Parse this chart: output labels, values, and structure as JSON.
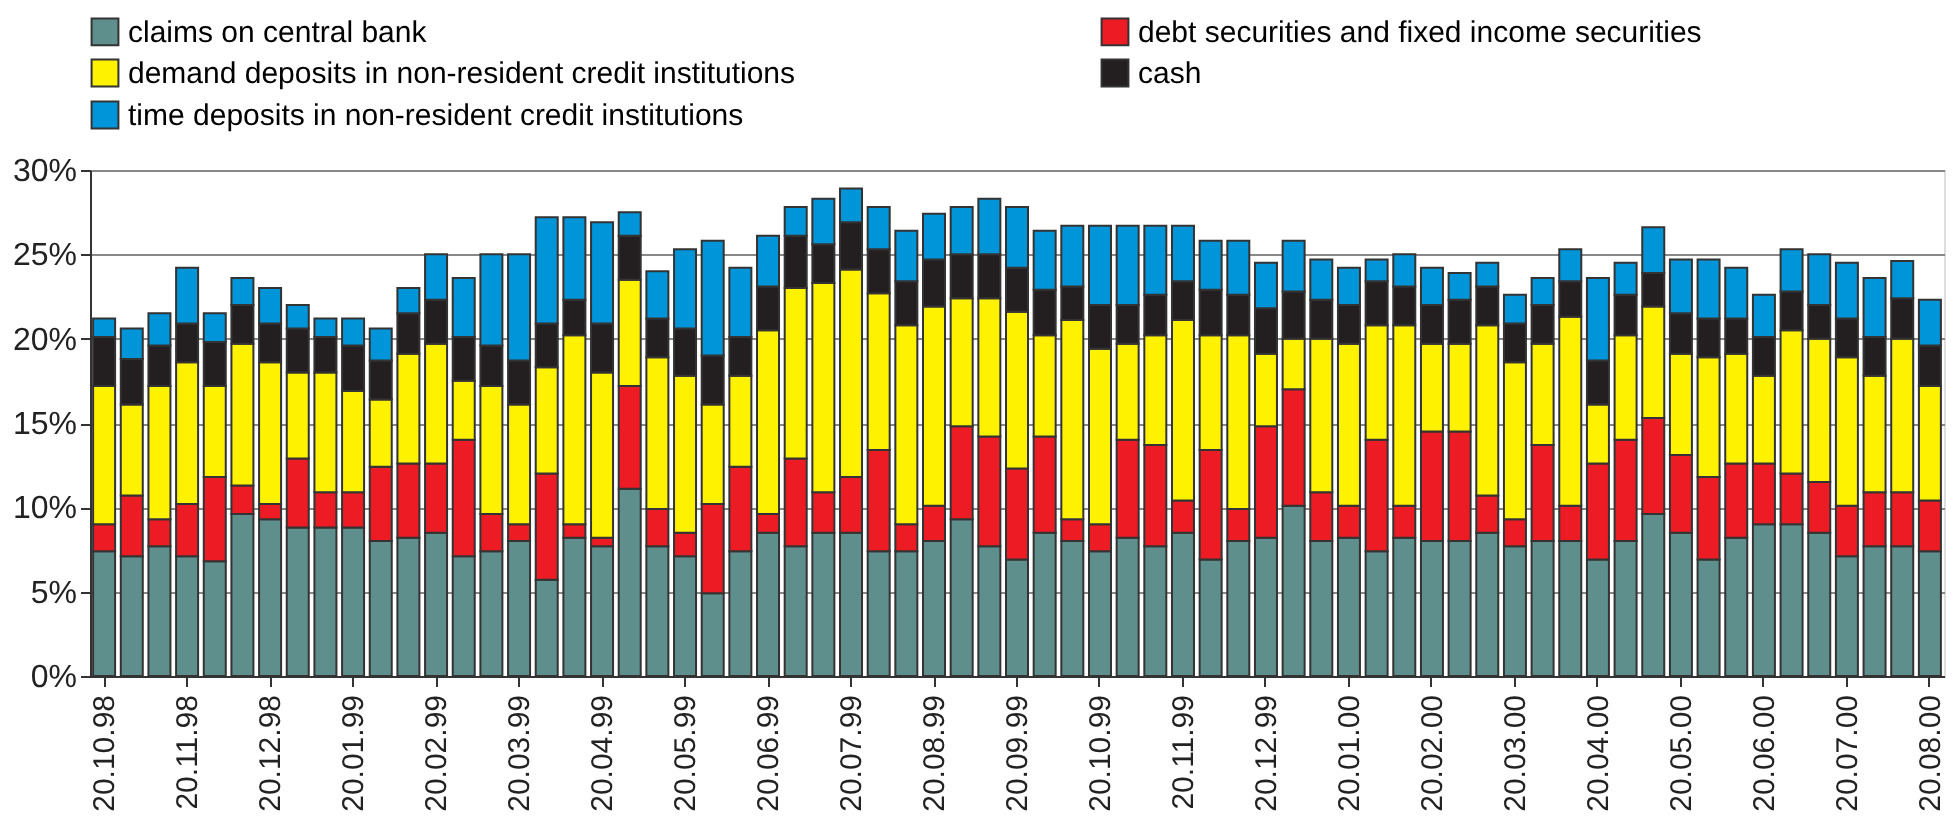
{
  "chart_data": {
    "type": "bar",
    "stacked": true,
    "categories": [
      "20.10.98",
      null,
      null,
      "20.11.98",
      null,
      null,
      "20.12.98",
      null,
      null,
      "20.01.99",
      null,
      null,
      "20.02.99",
      null,
      null,
      "20.03.99",
      null,
      null,
      "20.04.99",
      null,
      null,
      "20.05.99",
      null,
      null,
      "20.06.99",
      null,
      null,
      "20.07.99",
      null,
      null,
      "20.08.99",
      null,
      null,
      "20.09.99",
      null,
      null,
      "20.10.99",
      null,
      null,
      "20.11.99",
      null,
      null,
      "20.12.99",
      null,
      null,
      "20.01.00",
      null,
      null,
      "20.02.00",
      null,
      null,
      "20.03.00",
      null,
      null,
      "20.04.00",
      null,
      null,
      "20.05.00",
      null,
      null,
      "20.06.00",
      null,
      null,
      "20.07.00",
      null,
      null,
      "20.08.00"
    ],
    "series": [
      {
        "name": "claims on central bank",
        "color": "#5f8f8c",
        "values": [
          7.4,
          7.1,
          7.7,
          7.1,
          6.8,
          9.6,
          9.3,
          8.8,
          8.8,
          8.8,
          8.0,
          8.2,
          8.5,
          7.1,
          7.4,
          8.0,
          5.7,
          8.2,
          7.7,
          11.1,
          7.7,
          7.1,
          4.9,
          7.4,
          8.5,
          7.7,
          8.5,
          8.5,
          7.4,
          7.4,
          8.0,
          9.3,
          7.7,
          6.9,
          8.5,
          8.0,
          7.4,
          8.2,
          7.7,
          8.5,
          6.9,
          8.0,
          8.2,
          10.1,
          8.0,
          8.2,
          7.4,
          8.2,
          8.0,
          8.0,
          8.5,
          7.7,
          8.0,
          8.0,
          6.9,
          8.0,
          9.6,
          8.5,
          6.9,
          8.2,
          9.0,
          9.0,
          8.5,
          7.1,
          7.7,
          7.7,
          7.4
        ]
      },
      {
        "name": "debt securities and fixed income securities",
        "color": "#ed1c24",
        "values": [
          1.6,
          3.6,
          1.6,
          3.1,
          5.0,
          1.7,
          0.9,
          4.1,
          2.1,
          2.1,
          4.4,
          4.4,
          4.1,
          6.9,
          2.2,
          1.0,
          6.3,
          0.8,
          0.5,
          6.1,
          2.2,
          1.4,
          5.3,
          5.0,
          1.1,
          5.2,
          2.4,
          3.3,
          6.0,
          1.6,
          2.1,
          5.5,
          6.5,
          5.4,
          5.7,
          1.3,
          1.6,
          5.8,
          6.0,
          1.9,
          6.5,
          1.9,
          6.6,
          6.9,
          2.9,
          1.9,
          6.6,
          1.9,
          6.5,
          6.5,
          2.2,
          1.6,
          5.7,
          2.1,
          5.7,
          6.0,
          5.7,
          4.6,
          4.9,
          4.4,
          3.6,
          3.0,
          3.0,
          3.0,
          3.2,
          3.2,
          3.0
        ]
      },
      {
        "name": "demand deposits in non-resident credit institutions",
        "color": "#fff200",
        "values": [
          8.2,
          5.4,
          7.9,
          8.4,
          5.4,
          8.4,
          8.4,
          5.1,
          7.1,
          6.0,
          4.0,
          6.5,
          7.1,
          3.5,
          7.6,
          7.1,
          6.3,
          11.2,
          9.8,
          6.3,
          9.0,
          9.3,
          5.9,
          5.4,
          10.9,
          10.1,
          12.4,
          12.3,
          9.3,
          11.8,
          11.8,
          7.6,
          8.2,
          9.3,
          6.0,
          11.8,
          10.4,
          5.7,
          6.5,
          10.7,
          6.8,
          10.3,
          4.3,
          3.0,
          9.1,
          9.6,
          6.8,
          10.7,
          5.2,
          5.2,
          10.1,
          9.3,
          6.0,
          11.2,
          3.5,
          6.2,
          6.6,
          6.0,
          7.1,
          6.5,
          5.2,
          8.5,
          8.5,
          8.8,
          6.9,
          9.1,
          6.8
        ]
      },
      {
        "name": "cash",
        "color": "#231f20",
        "values": [
          2.9,
          2.7,
          2.4,
          2.3,
          2.6,
          2.3,
          2.3,
          2.6,
          2.1,
          2.7,
          2.3,
          2.4,
          2.6,
          2.6,
          2.4,
          2.6,
          2.6,
          2.1,
          2.9,
          2.6,
          2.3,
          2.8,
          2.9,
          2.3,
          2.6,
          3.1,
          2.3,
          2.8,
          2.6,
          2.6,
          2.8,
          2.6,
          2.6,
          2.6,
          2.7,
          2.0,
          2.6,
          2.3,
          2.4,
          2.3,
          2.7,
          2.4,
          2.7,
          2.8,
          2.3,
          2.3,
          2.6,
          2.3,
          2.3,
          2.6,
          2.3,
          2.3,
          2.3,
          2.1,
          2.6,
          2.4,
          2.0,
          2.4,
          2.3,
          2.1,
          2.3,
          2.3,
          2.0,
          2.3,
          2.3,
          2.4,
          2.4
        ]
      },
      {
        "name": "time deposits in non-resident credit institutions",
        "color": "#0095d9",
        "values": [
          1.1,
          1.8,
          1.9,
          3.3,
          1.7,
          1.6,
          2.1,
          1.4,
          1.1,
          1.6,
          1.9,
          1.5,
          2.7,
          3.5,
          5.4,
          6.3,
          6.3,
          4.9,
          6.0,
          1.4,
          2.8,
          4.7,
          6.8,
          4.1,
          3.0,
          1.7,
          2.7,
          2.0,
          2.5,
          3.0,
          2.7,
          2.8,
          3.3,
          3.6,
          3.5,
          3.6,
          4.7,
          4.7,
          4.1,
          3.3,
          2.9,
          3.2,
          2.7,
          3.0,
          2.4,
          2.2,
          1.3,
          1.9,
          2.2,
          1.6,
          1.4,
          1.7,
          1.6,
          1.9,
          4.9,
          1.9,
          2.7,
          3.2,
          3.5,
          3.0,
          2.5,
          2.5,
          3.0,
          3.3,
          3.5,
          2.2,
          2.7
        ]
      }
    ],
    "ylim": [
      0,
      30
    ],
    "yticks": [
      {
        "value": 0,
        "label": "0%"
      },
      {
        "value": 5,
        "label": "5%"
      },
      {
        "value": 10,
        "label": "10%"
      },
      {
        "value": 15,
        "label": "15%"
      },
      {
        "value": 20,
        "label": "20%"
      },
      {
        "value": 25,
        "label": "25%"
      },
      {
        "value": 30,
        "label": "30%"
      }
    ],
    "grid": "y",
    "legend": "top"
  }
}
